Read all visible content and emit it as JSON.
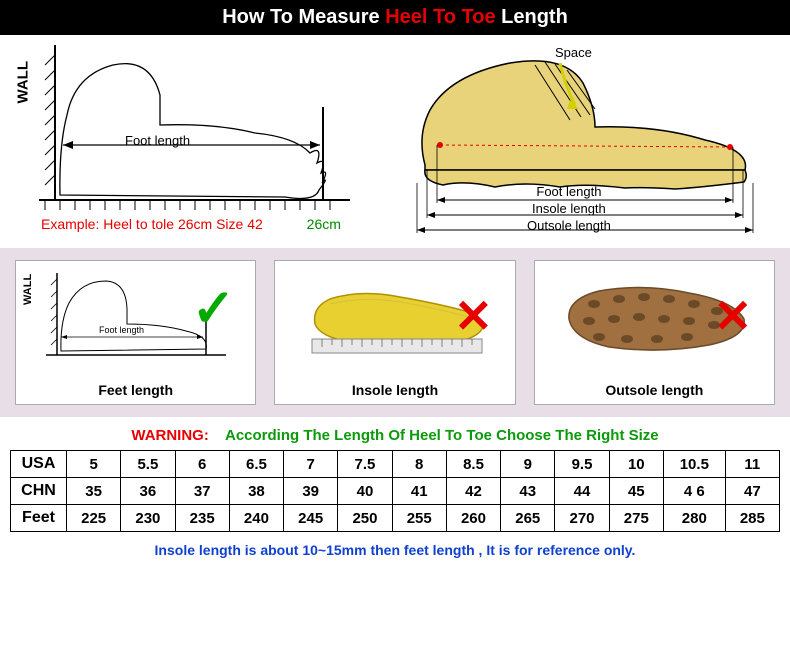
{
  "header": {
    "pre": "How To Measure ",
    "mid": "Heel To Toe",
    "post": " Length"
  },
  "diagram_left": {
    "wall": "WALL",
    "foot_length": "Foot length",
    "example": "Example: Heel to tole 26cm Size 42",
    "cm": "26cm",
    "colors": {
      "line": "#000",
      "example": "#e60000",
      "cm": "#008800"
    }
  },
  "diagram_right": {
    "space": "Space",
    "labels": {
      "foot": "Foot length",
      "insole": "Insole length",
      "outsole": "Outsole length"
    },
    "colors": {
      "shoe_fill": "#e8d37a",
      "shoe_stroke": "#000",
      "marker": "#e60000",
      "arrow": "#d2d000"
    }
  },
  "panels": {
    "bg": "#e7dee7",
    "items": [
      {
        "label": "Feet length",
        "mark": "check",
        "wall": "WALL",
        "foot": "Foot length"
      },
      {
        "label": "Insole length",
        "mark": "cross"
      },
      {
        "label": "Outsole length",
        "mark": "cross"
      }
    ],
    "check_color": "#00aa00",
    "cross_color": "#e60000"
  },
  "warning": {
    "w": "WARNING:",
    "g": "According The Length Of Heel To Toe Choose The Right Size"
  },
  "size_table": {
    "rows": [
      {
        "label": "USA",
        "cells": [
          "5",
          "5.5",
          "6",
          "6.5",
          "7",
          "7.5",
          "8",
          "8.5",
          "9",
          "9.5",
          "10",
          "10.5",
          "11"
        ]
      },
      {
        "label": "CHN",
        "cells": [
          "35",
          "36",
          "37",
          "38",
          "39",
          "40",
          "41",
          "42",
          "43",
          "44",
          "45",
          "4 6",
          "47"
        ]
      },
      {
        "label": "Feet",
        "cells": [
          "225",
          "230",
          "235",
          "240",
          "245",
          "250",
          "255",
          "260",
          "265",
          "270",
          "275",
          "280",
          "285"
        ]
      }
    ]
  },
  "note": "Insole length is about 10~15mm then feet length , It is for reference only.",
  "note_color": "#1040d0"
}
